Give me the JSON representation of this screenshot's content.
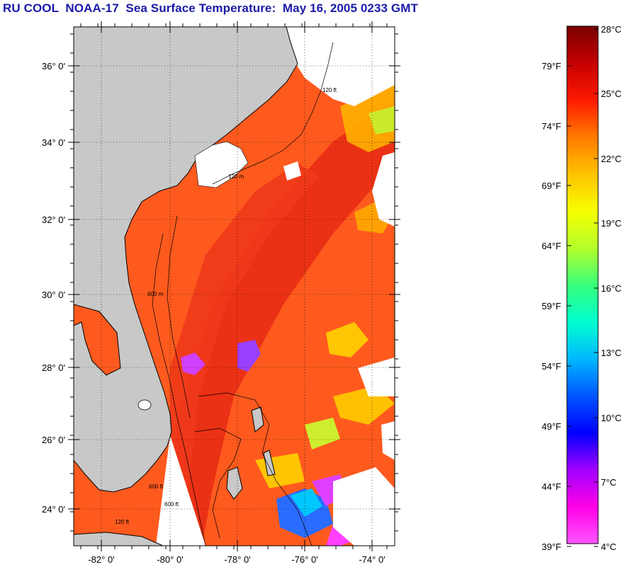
{
  "title": "RU COOL  NOAA-17  Sea Surface Temperature:  May 16, 2005 0233 GMT",
  "map": {
    "lat_labels": [
      "36° 0'",
      "34° 0'",
      "32° 0'",
      "30° 0'",
      "28° 0'",
      "26° 0'",
      "24° 0'"
    ],
    "lon_labels": [
      "-82° 0'",
      "-80° 0'",
      "-78° 0'",
      "-76° 0'",
      "-74° 0'"
    ],
    "land_color": "#c8c8c8",
    "cloud_color": "#ffffff",
    "contour_labels": [
      "120 m",
      "600 m",
      "600 ft",
      "120 ft",
      "600 ft",
      "120 ft"
    ]
  },
  "colorbar": {
    "f_labels": [
      "79°F",
      "74°F",
      "69°F",
      "64°F",
      "59°F",
      "54°F",
      "49°F",
      "44°F",
      "39°F"
    ],
    "c_labels": [
      "28°C",
      "25°C",
      "22°C",
      "19°C",
      "16°C",
      "13°C",
      "10°C",
      "7°C",
      "4°C"
    ],
    "stops": [
      "#7a0000",
      "#c40000",
      "#ff1a00",
      "#ff7a00",
      "#ffc200",
      "#f6ff00",
      "#b4ff2a",
      "#38ff7a",
      "#00ffd0",
      "#00b8ff",
      "#0055ff",
      "#0000ff",
      "#a000ff",
      "#ff00e6",
      "#ff55ff"
    ]
  }
}
